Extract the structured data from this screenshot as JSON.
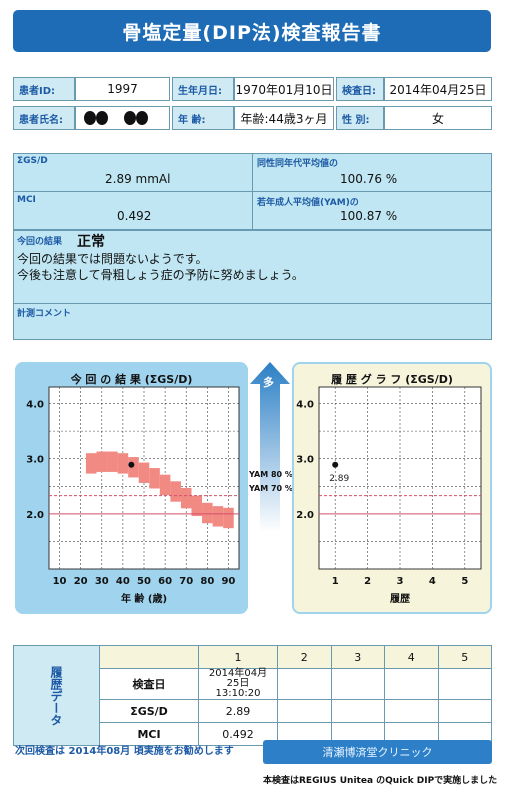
{
  "report": {
    "title": "骨塩定量(DIP法)検査報告書"
  },
  "patient": {
    "id_label": "患者ID:",
    "id_value": "1997",
    "birth_label": "生年月日:",
    "birth_value": "1970年01月10日",
    "exam_label": "検査日:",
    "exam_value": "2014年04月25日",
    "name_label": "患者氏名:",
    "age_label": "年 齢:",
    "age_value": "年齢:44歳3ヶ月",
    "sex_label": "性 別:",
    "sex_value": "女"
  },
  "measure": {
    "sgsd_label": "ΣGS/D",
    "sgsd_value": "2.89 mmAl",
    "same_age_label": "同性同年代平均値の",
    "same_age_value": "100.76 %",
    "mci_label": "MCI",
    "mci_value": "0.492",
    "yam_label": "若年成人平均値(YAM)の",
    "yam_value": "100.87 %"
  },
  "result": {
    "label": "今回の結果",
    "status": "正常",
    "line1": "今回の結果では問題ないようです。",
    "line2": "今後も注意して骨粗しょう症の予防に努めましょう。",
    "comment_label": "計測コメント"
  },
  "arrow": {
    "label": "多"
  },
  "chart_data": [
    {
      "type": "scatter",
      "title": "今 回 の 結 果 (ΣGS/D)",
      "xlabel": "年 齢 (歳)",
      "ylabel": "",
      "x_ticks": [
        "10",
        "20",
        "30",
        "40",
        "50",
        "60",
        "70",
        "80",
        "90"
      ],
      "y_ticks": [
        "2.0",
        "3.0",
        "4.0"
      ],
      "xlim": [
        5,
        95
      ],
      "ylim": [
        1.0,
        4.3
      ],
      "grid": true,
      "reference_lines": [
        {
          "name": "YAM 80 %",
          "y": 2.33,
          "style": "dashed"
        },
        {
          "name": "YAM 70 %",
          "y": 2.0,
          "style": "solid"
        }
      ],
      "band": {
        "x": [
          25,
          30,
          35,
          40,
          45,
          50,
          55,
          60,
          65,
          70,
          75,
          80,
          85,
          90
        ],
        "low": [
          2.73,
          2.76,
          2.76,
          2.73,
          2.66,
          2.56,
          2.46,
          2.34,
          2.22,
          2.1,
          1.96,
          1.83,
          1.77,
          1.74
        ],
        "high": [
          3.1,
          3.13,
          3.13,
          3.1,
          3.03,
          2.93,
          2.83,
          2.71,
          2.59,
          2.47,
          2.33,
          2.2,
          2.14,
          2.11
        ]
      },
      "points": [
        {
          "x": 44,
          "y": 2.89
        }
      ]
    },
    {
      "type": "scatter",
      "title": "履 歴 グ ラ フ (ΣGS/D)",
      "xlabel": "履歴",
      "ylabel": "",
      "x_ticks": [
        "1",
        "2",
        "3",
        "4",
        "5"
      ],
      "y_ticks": [
        "2.0",
        "3.0",
        "4.0"
      ],
      "xlim": [
        0.5,
        5.5
      ],
      "ylim": [
        1.0,
        4.3
      ],
      "grid": true,
      "reference_lines": [
        {
          "y": 2.33,
          "style": "dashed"
        },
        {
          "y": 2.0,
          "style": "solid"
        }
      ],
      "points": [
        {
          "x": 1,
          "y": 2.89,
          "label": "2.89"
        }
      ]
    }
  ],
  "history": {
    "side_label": "履歴データ",
    "headers": [
      "1",
      "2",
      "3",
      "4",
      "5"
    ],
    "rows": [
      {
        "label": "検査日",
        "values": [
          "2014年04月25日 13:10:20",
          "",
          "",
          "",
          ""
        ]
      },
      {
        "label": "ΣGS/D",
        "values": [
          "2.89",
          "",
          "",
          "",
          ""
        ]
      },
      {
        "label": "MCI",
        "values": [
          "0.492",
          "",
          "",
          "",
          ""
        ]
      }
    ]
  },
  "footer": {
    "next_exam": "次回検査は 2014年08月 頃実施をお勧めします",
    "clinic": "清瀬博済堂クリニック",
    "note": "本検査はREGIUS Unitea のQuick DIPで実施しました"
  },
  "colors": {
    "title_bg": "#1e6cb6",
    "label_text": "#1d5aa6",
    "band": "#f08a82",
    "ref_line": "#d4506a",
    "panel_blue": "#9fd3ee",
    "panel_yellow": "#f7f4dc"
  }
}
